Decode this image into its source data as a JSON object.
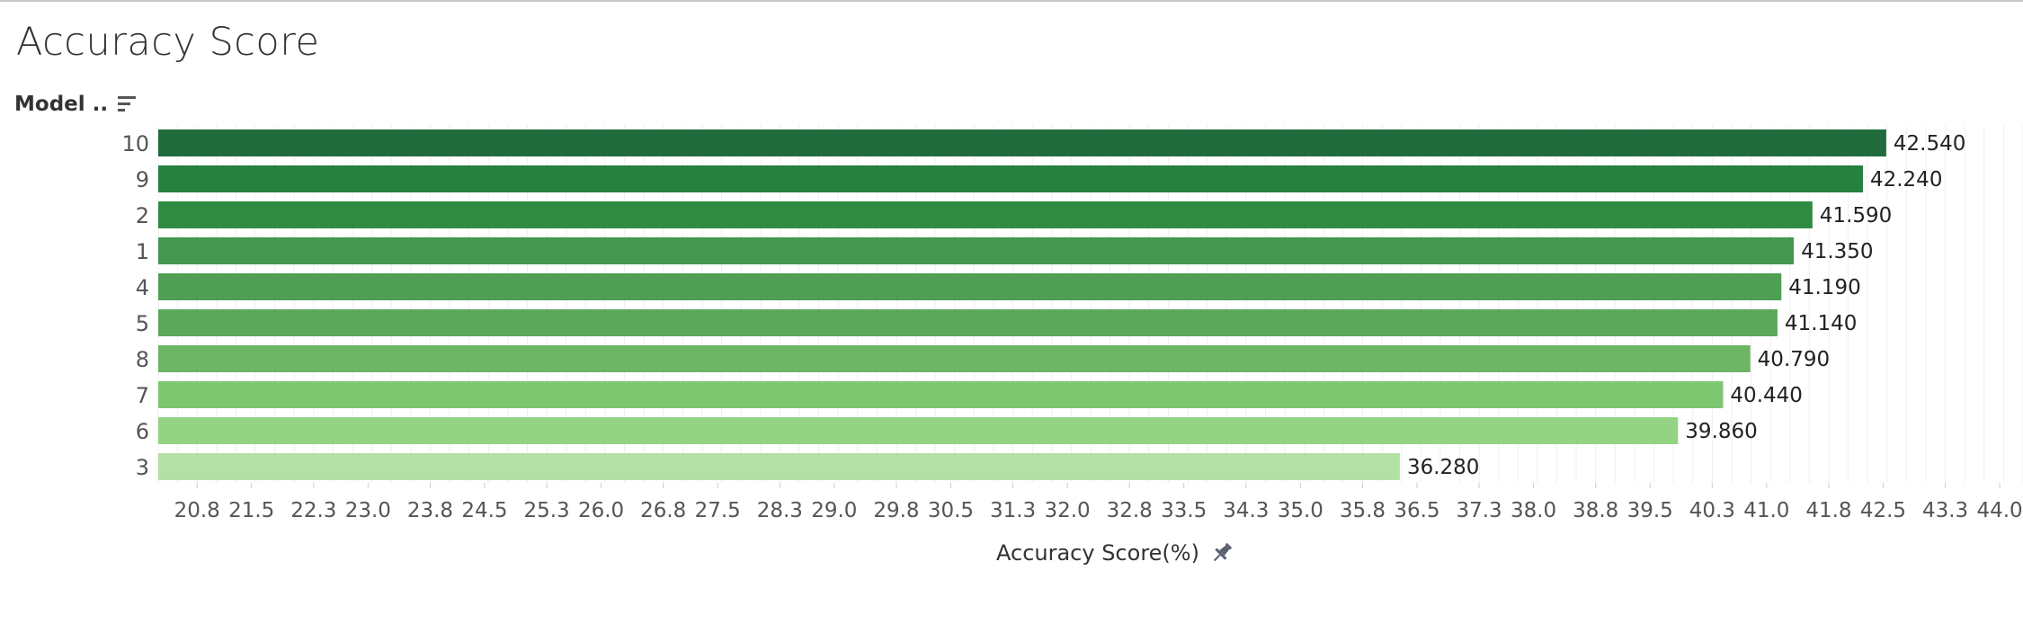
{
  "title": "Accuracy Score",
  "y_header": {
    "label": "Model ..",
    "sort_icon": "sort-descending-icon"
  },
  "x_title": {
    "label": "Accuracy Score(%)",
    "pin_icon": "pin-icon"
  },
  "chart_data": {
    "type": "bar",
    "orientation": "horizontal",
    "categories": [
      "10",
      "9",
      "2",
      "1",
      "4",
      "5",
      "8",
      "7",
      "6",
      "3"
    ],
    "values": [
      42.54,
      42.24,
      41.59,
      41.35,
      41.19,
      41.14,
      40.79,
      40.44,
      39.86,
      36.28
    ],
    "data_labels": [
      "42.540",
      "42.240",
      "41.590",
      "41.350",
      "41.190",
      "41.140",
      "40.790",
      "40.440",
      "39.860",
      "36.280"
    ],
    "colors": [
      "#206b3c",
      "#26803e",
      "#2f8b42",
      "#43974f",
      "#4f9f55",
      "#5ba75b",
      "#6cb564",
      "#7ec771",
      "#94d384",
      "#b3e0a4"
    ],
    "x_ticks": [
      "20.8",
      "21.5",
      "22.3",
      "23.0",
      "23.8",
      "24.5",
      "25.3",
      "26.0",
      "26.8",
      "27.5",
      "28.3",
      "29.0",
      "29.8",
      "30.5",
      "31.3",
      "32.0",
      "32.8",
      "33.5",
      "34.3",
      "35.0",
      "35.8",
      "36.5",
      "37.3",
      "38.0",
      "38.8",
      "39.5",
      "40.3",
      "41.0",
      "41.8",
      "42.5",
      "43.3",
      "44.0"
    ],
    "xlim": [
      20.3,
      44.3
    ],
    "xlabel": "Accuracy Score(%)",
    "ylabel": "Model ..",
    "grid": true
  }
}
